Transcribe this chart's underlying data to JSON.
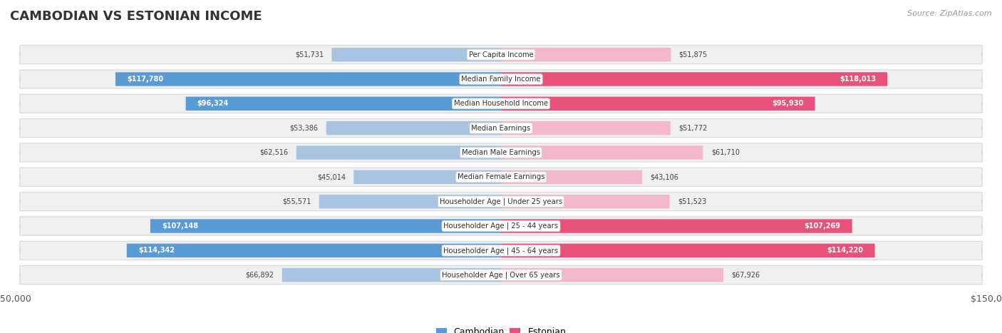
{
  "title": "CAMBODIAN VS ESTONIAN INCOME",
  "source": "Source: ZipAtlas.com",
  "categories": [
    "Per Capita Income",
    "Median Family Income",
    "Median Household Income",
    "Median Earnings",
    "Median Male Earnings",
    "Median Female Earnings",
    "Householder Age | Under 25 years",
    "Householder Age | 25 - 44 years",
    "Householder Age | 45 - 64 years",
    "Householder Age | Over 65 years"
  ],
  "cambodian_values": [
    51731,
    117780,
    96324,
    53386,
    62516,
    45014,
    55571,
    107148,
    114342,
    66892
  ],
  "estonian_values": [
    51875,
    118013,
    95930,
    51772,
    61710,
    43106,
    51523,
    107269,
    114220,
    67926
  ],
  "cambodian_labels": [
    "$51,731",
    "$117,780",
    "$96,324",
    "$53,386",
    "$62,516",
    "$45,014",
    "$55,571",
    "$107,148",
    "$114,342",
    "$66,892"
  ],
  "estonian_labels": [
    "$51,875",
    "$118,013",
    "$95,930",
    "$51,772",
    "$61,710",
    "$43,106",
    "$51,523",
    "$107,269",
    "$114,220",
    "$67,926"
  ],
  "max_value": 150000,
  "cambodian_color_light": "#a8c4e0",
  "cambodian_color_dark": "#5b9bd5",
  "estonian_color_light": "#f4b8cc",
  "estonian_color_dark": "#e8527a",
  "row_bg": "#f0f0f0",
  "row_border": "#d8d8d8",
  "label_color_inside": "#ffffff",
  "label_color_outside": "#555555",
  "legend_cambodian": "Cambodian",
  "legend_estonian": "Estonian",
  "threshold_inside": 80000
}
